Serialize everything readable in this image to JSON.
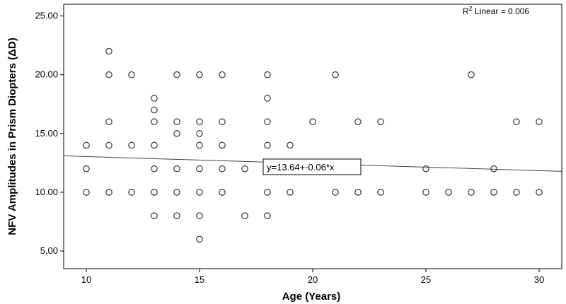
{
  "chart_data": {
    "type": "scatter",
    "title": "",
    "xlabel": "Age (Years)",
    "ylabel": "NFV Amplitudes in Prism Diopters (ΔD)",
    "xlim": [
      9,
      31
    ],
    "ylim": [
      3.5,
      26
    ],
    "xticks": [
      10,
      15,
      20,
      25,
      30
    ],
    "yticks": [
      5,
      10,
      15,
      20,
      25
    ],
    "xtick_labels": [
      "10",
      "15",
      "20",
      "25",
      "30"
    ],
    "ytick_labels": [
      "5.00",
      "10.00",
      "15.00",
      "20.00",
      "25.00"
    ],
    "grid": false,
    "marker": "open-circle",
    "points": [
      [
        10,
        14
      ],
      [
        10,
        12
      ],
      [
        10,
        10
      ],
      [
        11,
        22
      ],
      [
        11,
        20
      ],
      [
        11,
        16
      ],
      [
        11,
        14
      ],
      [
        11,
        10
      ],
      [
        12,
        20
      ],
      [
        12,
        14
      ],
      [
        12,
        10
      ],
      [
        13,
        18
      ],
      [
        13,
        17
      ],
      [
        13,
        16
      ],
      [
        13,
        14
      ],
      [
        13,
        12
      ],
      [
        13,
        10
      ],
      [
        13,
        8
      ],
      [
        14,
        20
      ],
      [
        14,
        16
      ],
      [
        14,
        15
      ],
      [
        14,
        12
      ],
      [
        14,
        10
      ],
      [
        14,
        8
      ],
      [
        15,
        20
      ],
      [
        15,
        16
      ],
      [
        15,
        15
      ],
      [
        15,
        14
      ],
      [
        15,
        12
      ],
      [
        15,
        10
      ],
      [
        15,
        8
      ],
      [
        15,
        6
      ],
      [
        16,
        20
      ],
      [
        16,
        16
      ],
      [
        16,
        14
      ],
      [
        16,
        12
      ],
      [
        16,
        10
      ],
      [
        17,
        12
      ],
      [
        17,
        8
      ],
      [
        18,
        20
      ],
      [
        18,
        18
      ],
      [
        18,
        16
      ],
      [
        18,
        14
      ],
      [
        18,
        12
      ],
      [
        18,
        10
      ],
      [
        18,
        8
      ],
      [
        19,
        14
      ],
      [
        19,
        10
      ],
      [
        20,
        16
      ],
      [
        21,
        20
      ],
      [
        21,
        10
      ],
      [
        22,
        16
      ],
      [
        22,
        10
      ],
      [
        23,
        16
      ],
      [
        23,
        10
      ],
      [
        25,
        12
      ],
      [
        25,
        10
      ],
      [
        26,
        10
      ],
      [
        27,
        20
      ],
      [
        27,
        10
      ],
      [
        28,
        12
      ],
      [
        28,
        10
      ],
      [
        29,
        16
      ],
      [
        29,
        10
      ],
      [
        30,
        16
      ],
      [
        30,
        10
      ]
    ],
    "fit_line": {
      "intercept": 13.64,
      "slope": -0.06
    },
    "annotations": {
      "r2_prefix": "R",
      "r2_sup": "2",
      "r2_text": " Linear = 0.006",
      "equation": "y=13.64+-0.06*x"
    }
  }
}
